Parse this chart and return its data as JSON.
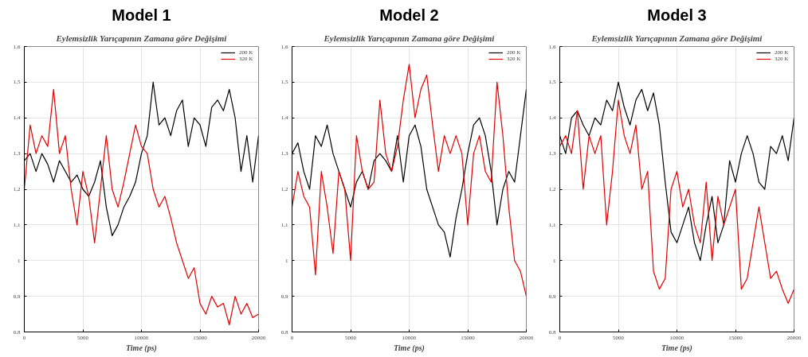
{
  "chart_data": [
    {
      "type": "line",
      "title": "Model 1",
      "subtitle": "Eylemsizlik Yarıçapının Zamana göre Değişimi",
      "xlabel": "Time (ps)",
      "x": [
        0,
        500,
        1000,
        1500,
        2000,
        2500,
        3000,
        3500,
        4000,
        4500,
        5000,
        5500,
        6000,
        6500,
        7000,
        7500,
        8000,
        8500,
        9000,
        9500,
        10000,
        10500,
        11000,
        11500,
        12000,
        12500,
        13000,
        13500,
        14000,
        14500,
        15000,
        15500,
        16000,
        16500,
        17000,
        17500,
        18000,
        18500,
        19000,
        19500,
        20000
      ],
      "series": [
        {
          "name": "200 K",
          "color": "#000000",
          "values": [
            1.28,
            1.3,
            1.25,
            1.3,
            1.27,
            1.22,
            1.28,
            1.25,
            1.22,
            1.24,
            1.2,
            1.18,
            1.22,
            1.28,
            1.15,
            1.07,
            1.1,
            1.15,
            1.18,
            1.22,
            1.3,
            1.35,
            1.5,
            1.38,
            1.4,
            1.35,
            1.42,
            1.45,
            1.32,
            1.4,
            1.38,
            1.32,
            1.43,
            1.45,
            1.42,
            1.48,
            1.4,
            1.25,
            1.35,
            1.22,
            1.35
          ]
        },
        {
          "name": "320 K",
          "color": "#e00000",
          "values": [
            1.2,
            1.38,
            1.3,
            1.35,
            1.32,
            1.48,
            1.3,
            1.35,
            1.2,
            1.1,
            1.25,
            1.18,
            1.05,
            1.2,
            1.35,
            1.2,
            1.15,
            1.22,
            1.3,
            1.38,
            1.32,
            1.3,
            1.2,
            1.15,
            1.18,
            1.12,
            1.05,
            1.0,
            0.95,
            0.98,
            0.88,
            0.85,
            0.9,
            0.87,
            0.88,
            0.82,
            0.9,
            0.85,
            0.88,
            0.84,
            0.85
          ]
        }
      ],
      "xlim": [
        0,
        20000
      ],
      "xticks": [
        0,
        5000,
        10000,
        15000,
        20000
      ],
      "ylim": [
        0.8,
        1.6
      ],
      "yticks": [
        {
          "value": 0.8,
          "label": "0,8"
        },
        {
          "value": 0.9,
          "label": "0,9"
        },
        {
          "value": 1,
          "label": "1"
        },
        {
          "value": 1.1,
          "label": "1,1"
        },
        {
          "value": 1.2,
          "label": "1,2"
        },
        {
          "value": 1.3,
          "label": "1,3"
        },
        {
          "value": 1.4,
          "label": "1,4"
        },
        {
          "value": 1.5,
          "label": "1,5"
        },
        {
          "value": 1.6,
          "label": "1,6"
        }
      ],
      "grid": true,
      "legend": "top right"
    },
    {
      "type": "line",
      "title": "Model 2",
      "subtitle": "Eylemsizlik Yarıçapının Zamana göre Değişimi",
      "xlabel": "Time (ps)",
      "x": [
        0,
        500,
        1000,
        1500,
        2000,
        2500,
        3000,
        3500,
        4000,
        4500,
        5000,
        5500,
        6000,
        6500,
        7000,
        7500,
        8000,
        8500,
        9000,
        9500,
        10000,
        10500,
        11000,
        11500,
        12000,
        12500,
        13000,
        13500,
        14000,
        14500,
        15000,
        15500,
        16000,
        16500,
        17000,
        17500,
        18000,
        18500,
        19000,
        19500,
        20000
      ],
      "series": [
        {
          "name": "200 K",
          "color": "#000000",
          "values": [
            1.3,
            1.33,
            1.25,
            1.2,
            1.35,
            1.32,
            1.38,
            1.3,
            1.25,
            1.2,
            1.15,
            1.22,
            1.25,
            1.2,
            1.28,
            1.3,
            1.28,
            1.25,
            1.35,
            1.22,
            1.35,
            1.38,
            1.32,
            1.2,
            1.15,
            1.1,
            1.08,
            1.01,
            1.12,
            1.2,
            1.3,
            1.38,
            1.4,
            1.35,
            1.25,
            1.1,
            1.2,
            1.25,
            1.22,
            1.35,
            1.48
          ]
        },
        {
          "name": "320 K",
          "color": "#e00000",
          "values": [
            1.15,
            1.25,
            1.18,
            1.15,
            0.96,
            1.25,
            1.15,
            1.02,
            1.25,
            1.2,
            1.0,
            1.35,
            1.25,
            1.2,
            1.22,
            1.45,
            1.3,
            1.25,
            1.32,
            1.45,
            1.55,
            1.4,
            1.48,
            1.52,
            1.38,
            1.25,
            1.35,
            1.3,
            1.35,
            1.3,
            1.1,
            1.3,
            1.35,
            1.25,
            1.22,
            1.5,
            1.35,
            1.15,
            1.0,
            0.97,
            0.9
          ]
        }
      ],
      "xlim": [
        0,
        20000
      ],
      "xticks": [
        0,
        5000,
        10000,
        15000,
        20000
      ],
      "ylim": [
        0.8,
        1.6
      ],
      "yticks": [
        {
          "value": 0.8,
          "label": "0,8"
        },
        {
          "value": 0.9,
          "label": "0,9"
        },
        {
          "value": 1,
          "label": "1"
        },
        {
          "value": 1.1,
          "label": "1,1"
        },
        {
          "value": 1.2,
          "label": "1,2"
        },
        {
          "value": 1.3,
          "label": "1,3"
        },
        {
          "value": 1.4,
          "label": "1,4"
        },
        {
          "value": 1.5,
          "label": "1,5"
        },
        {
          "value": 1.6,
          "label": "1,6"
        }
      ],
      "grid": true,
      "legend": "top right"
    },
    {
      "type": "line",
      "title": "Model 3",
      "subtitle": "Eylemsizlik Yarıçapının Zamana göre Değişimi",
      "xlabel": "Time (ps)",
      "x": [
        0,
        500,
        1000,
        1500,
        2000,
        2500,
        3000,
        3500,
        4000,
        4500,
        5000,
        5500,
        6000,
        6500,
        7000,
        7500,
        8000,
        8500,
        9000,
        9500,
        10000,
        10500,
        11000,
        11500,
        12000,
        12500,
        13000,
        13500,
        14000,
        14500,
        15000,
        15500,
        16000,
        16500,
        17000,
        17500,
        18000,
        18500,
        19000,
        19500,
        20000
      ],
      "series": [
        {
          "name": "200 K",
          "color": "#000000",
          "values": [
            1.35,
            1.3,
            1.4,
            1.42,
            1.38,
            1.35,
            1.4,
            1.38,
            1.45,
            1.42,
            1.5,
            1.43,
            1.38,
            1.45,
            1.48,
            1.42,
            1.47,
            1.38,
            1.22,
            1.08,
            1.05,
            1.1,
            1.15,
            1.05,
            1.0,
            1.1,
            1.18,
            1.05,
            1.1,
            1.28,
            1.22,
            1.3,
            1.35,
            1.3,
            1.22,
            1.2,
            1.32,
            1.3,
            1.35,
            1.28,
            1.4
          ]
        },
        {
          "name": "320 K",
          "color": "#e00000",
          "values": [
            1.32,
            1.35,
            1.3,
            1.42,
            1.2,
            1.35,
            1.3,
            1.35,
            1.1,
            1.25,
            1.45,
            1.35,
            1.3,
            1.38,
            1.2,
            1.25,
            0.97,
            0.92,
            0.95,
            1.2,
            1.25,
            1.15,
            1.2,
            1.1,
            1.05,
            1.22,
            1.0,
            1.18,
            1.1,
            1.15,
            1.2,
            0.92,
            0.95,
            1.05,
            1.15,
            1.05,
            0.95,
            0.97,
            0.92,
            0.88,
            0.92
          ]
        }
      ],
      "xlim": [
        0,
        20000
      ],
      "xticks": [
        0,
        5000,
        10000,
        15000,
        20000
      ],
      "ylim": [
        0.8,
        1.6
      ],
      "yticks": [
        {
          "value": 0.8,
          "label": "0,8"
        },
        {
          "value": 0.9,
          "label": "0,9"
        },
        {
          "value": 1,
          "label": "1"
        },
        {
          "value": 1.1,
          "label": "1,1"
        },
        {
          "value": 1.2,
          "label": "1,2"
        },
        {
          "value": 1.3,
          "label": "1,3"
        },
        {
          "value": 1.4,
          "label": "1,4"
        },
        {
          "value": 1.5,
          "label": "1,5"
        },
        {
          "value": 1.6,
          "label": "1,6"
        }
      ],
      "grid": true,
      "legend": "top right"
    }
  ]
}
